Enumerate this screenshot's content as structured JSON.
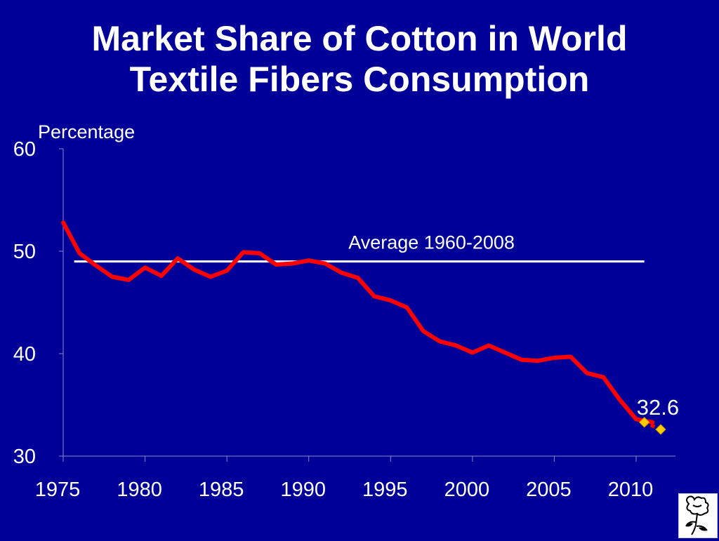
{
  "title_lines": [
    "Market Share of Cotton in World",
    "Textile Fibers Consumption"
  ],
  "colors": {
    "background": "#000099",
    "series": "#ff0000",
    "average_line": "#ffffff",
    "projection_marker": "#ffcc00"
  },
  "logo_icon": "cotton-boll-icon",
  "chart_data": {
    "type": "line",
    "ylabel": "Percentage",
    "xlabel": "",
    "ylim": [
      30,
      60
    ],
    "xlim": [
      1975,
      2011
    ],
    "x_ticks": [
      "1975",
      "1980",
      "1985",
      "1990",
      "1995",
      "2000",
      "2005",
      "2010"
    ],
    "y_ticks": [
      "30",
      "40",
      "50",
      "60"
    ],
    "grid": false,
    "series": [
      {
        "x": [
          1975,
          1976,
          1977,
          1978,
          1979,
          1980,
          1981,
          1982,
          1983,
          1984,
          1985,
          1986,
          1987,
          1988,
          1989,
          1990,
          1991,
          1992,
          1993,
          1994,
          1995,
          1996,
          1997,
          1998,
          1999,
          2000,
          2001,
          2002,
          2003,
          2004,
          2005,
          2006,
          2007,
          2008,
          2009,
          2010,
          2011
        ],
        "values": [
          52.8,
          49.8,
          48.6,
          47.5,
          47.2,
          48.4,
          47.6,
          49.3,
          48.2,
          47.5,
          48.1,
          49.9,
          49.8,
          48.7,
          48.8,
          49.1,
          48.8,
          47.9,
          47.4,
          45.6,
          45.2,
          44.5,
          42.2,
          41.2,
          40.8,
          40.1,
          40.8,
          40.1,
          39.4,
          39.3,
          39.6,
          39.7,
          38.1,
          37.7,
          35.5,
          33.6,
          33.3
        ]
      },
      {
        "x": [
          2010.5,
          2011.5
        ],
        "values": [
          33.3,
          32.6
        ]
      }
    ],
    "reference_line": {
      "label": "Average 1960-2008",
      "value": 49,
      "x_start": 1975.5,
      "x_end": 2010.5
    },
    "end_label": "32.6"
  }
}
